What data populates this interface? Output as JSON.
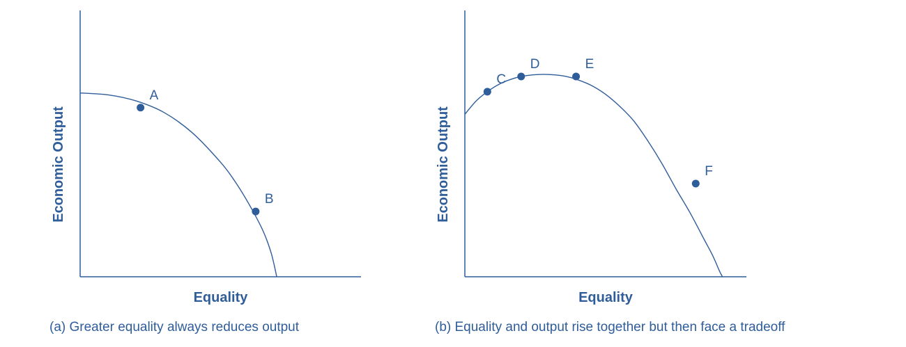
{
  "chart_data": [
    {
      "type": "line",
      "panel": "a",
      "caption": "(a) Greater equality always reduces output",
      "xlabel": "Equality",
      "ylabel": "Economic Output",
      "xlim": [
        0,
        10
      ],
      "ylim": [
        0,
        10
      ],
      "grid": false,
      "series": [
        {
          "x": [
            0,
            1,
            2,
            3,
            4,
            5,
            5.5,
            6,
            6.5,
            6.8,
            7
          ],
          "y": [
            6.9,
            6.83,
            6.6,
            6.16,
            5.4,
            4.3,
            3.6,
            2.75,
            1.75,
            0.9,
            0
          ]
        }
      ],
      "points": [
        {
          "label": "A",
          "x": 2.15,
          "y": 6.35
        },
        {
          "label": "B",
          "x": 6.25,
          "y": 2.45
        }
      ]
    },
    {
      "type": "line",
      "panel": "b",
      "caption": "(b) Equality and output rise together but then face a tradeoff",
      "xlabel": "Equality",
      "ylabel": "Economic Output",
      "xlim": [
        0,
        10
      ],
      "ylim": [
        0,
        10
      ],
      "grid": false,
      "series": [
        {
          "x": [
            0,
            0.4,
            0.8,
            1.2,
            1.6,
            2,
            2.4,
            2.8,
            3.2,
            3.6,
            4,
            4.5,
            5,
            5.5,
            6,
            6.5,
            7,
            7.5,
            8,
            8.5,
            8.8,
            9.05,
            9.15
          ],
          "y": [
            6.1,
            6.6,
            6.95,
            7.22,
            7.4,
            7.52,
            7.58,
            7.6,
            7.58,
            7.52,
            7.4,
            7.18,
            6.85,
            6.4,
            5.85,
            5.1,
            4.25,
            3.3,
            2.4,
            1.4,
            0.8,
            0.2,
            0
          ]
        }
      ],
      "points": [
        {
          "label": "C",
          "x": 0.8,
          "y": 6.95
        },
        {
          "label": "D",
          "x": 2.0,
          "y": 7.52
        },
        {
          "label": "E",
          "x": 3.95,
          "y": 7.52
        },
        {
          "label": "F",
          "x": 8.2,
          "y": 3.5
        }
      ]
    }
  ]
}
